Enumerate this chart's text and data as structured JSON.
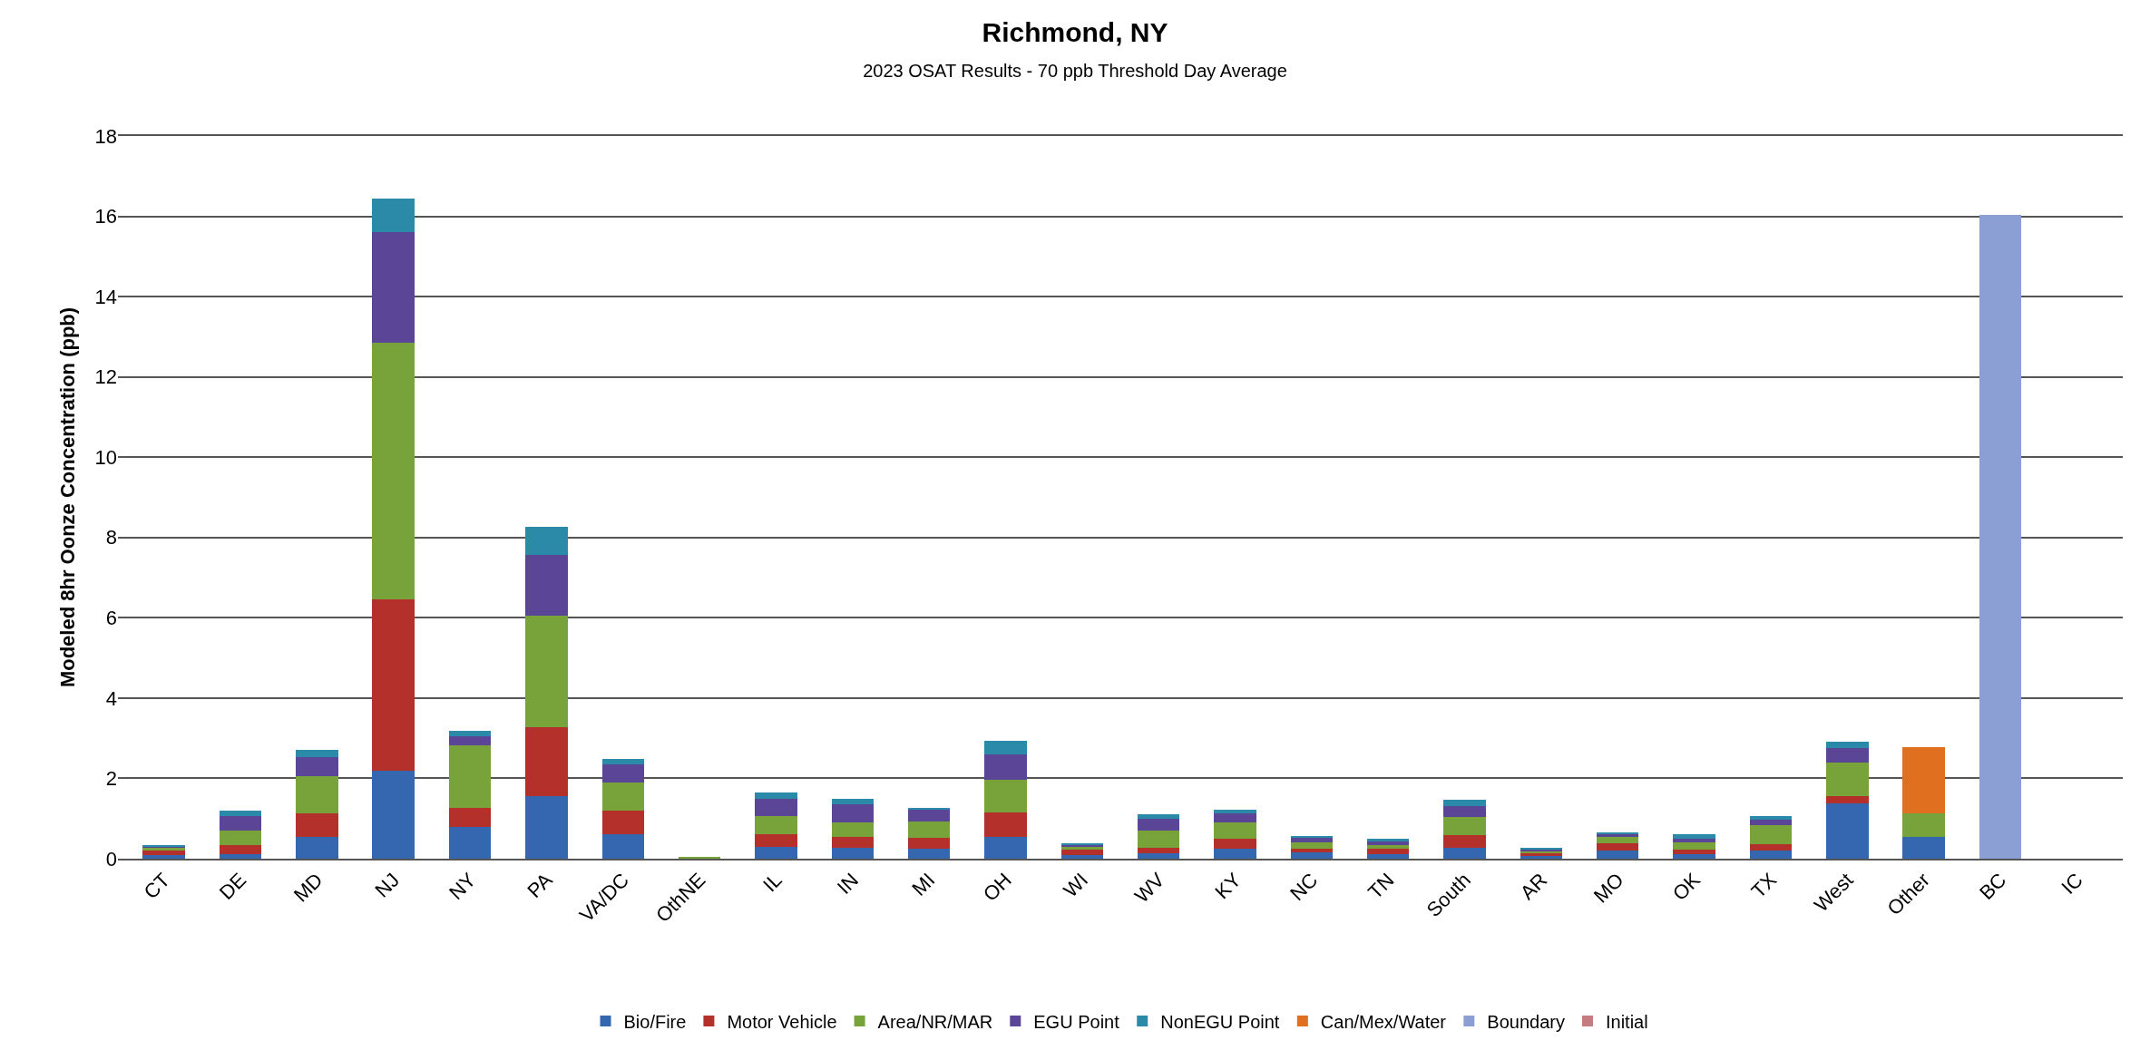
{
  "chart_data": {
    "type": "bar",
    "stacked": true,
    "title": "Richmond, NY",
    "subtitle": "2023 OSAT Results - 70 ppb Threshold Day Average",
    "ylabel": "Modeled 8hr Oonze Concentration (ppb)",
    "categories": [
      "CT",
      "DE",
      "MD",
      "NJ",
      "NY",
      "PA",
      "VA/DC",
      "OthNE",
      "IL",
      "IN",
      "MI",
      "OH",
      "WI",
      "WV",
      "KY",
      "NC",
      "TN",
      "South",
      "AR",
      "MO",
      "OK",
      "TX",
      "West",
      "Other",
      "BC",
      "IC"
    ],
    "series": [
      {
        "name": "Bio/Fire",
        "color": "#3566b0",
        "values": [
          0.08,
          0.12,
          0.54,
          2.18,
          0.8,
          1.56,
          0.6,
          null,
          0.3,
          0.28,
          0.25,
          0.55,
          0.1,
          0.14,
          0.25,
          0.15,
          0.12,
          0.28,
          0.06,
          0.2,
          0.12,
          0.2,
          1.38,
          0.54,
          null,
          null
        ]
      },
      {
        "name": "Motor Vehicle",
        "color": "#b3302b",
        "values": [
          0.12,
          0.22,
          0.6,
          4.28,
          0.46,
          1.71,
          0.6,
          null,
          0.3,
          0.26,
          0.27,
          0.61,
          0.12,
          0.12,
          0.25,
          0.1,
          0.12,
          0.31,
          0.08,
          0.19,
          0.1,
          0.16,
          0.18,
          null,
          null,
          null
        ]
      },
      {
        "name": "Area/NR/MAR",
        "color": "#78a33b",
        "values": [
          0.08,
          0.36,
          0.91,
          6.39,
          1.56,
          2.79,
          0.7,
          0.04,
          0.46,
          0.36,
          0.4,
          0.8,
          0.08,
          0.44,
          0.4,
          0.15,
          0.1,
          0.44,
          0.04,
          0.15,
          0.18,
          0.48,
          0.84,
          0.6,
          null,
          null
        ]
      },
      {
        "name": "EGU Point",
        "color": "#5b4597",
        "values": [
          0.02,
          0.36,
          0.48,
          2.75,
          0.24,
          1.5,
          0.44,
          null,
          0.44,
          0.45,
          0.3,
          0.64,
          0.04,
          0.3,
          0.22,
          0.12,
          0.1,
          0.27,
          0.05,
          0.08,
          0.1,
          0.14,
          0.36,
          null,
          null,
          null
        ]
      },
      {
        "name": "NonEGU Point",
        "color": "#2b8aa8",
        "values": [
          0.03,
          0.14,
          0.18,
          0.85,
          0.12,
          0.7,
          0.14,
          null,
          0.14,
          0.13,
          0.05,
          0.33,
          0.03,
          0.1,
          0.1,
          0.04,
          0.06,
          0.16,
          0.03,
          0.03,
          0.1,
          0.08,
          0.16,
          null,
          null,
          null
        ]
      },
      {
        "name": "Can/Mex/Water",
        "color": "#e07020",
        "values": [
          null,
          null,
          null,
          null,
          null,
          null,
          null,
          null,
          null,
          null,
          null,
          null,
          null,
          null,
          null,
          null,
          null,
          null,
          null,
          null,
          null,
          null,
          null,
          1.64,
          null,
          null
        ]
      },
      {
        "name": "Boundary",
        "color": "#8c9fd4",
        "values": [
          null,
          null,
          null,
          null,
          null,
          null,
          null,
          null,
          null,
          null,
          null,
          null,
          null,
          null,
          null,
          null,
          null,
          null,
          null,
          null,
          null,
          null,
          null,
          null,
          16.03,
          null
        ]
      },
      {
        "name": "Initial",
        "color": "#c47c80",
        "values": [
          null,
          null,
          null,
          null,
          null,
          null,
          null,
          null,
          null,
          null,
          null,
          null,
          null,
          null,
          null,
          null,
          null,
          null,
          null,
          null,
          null,
          null,
          null,
          null,
          null,
          null
        ]
      }
    ],
    "ylim": [
      0,
      18
    ],
    "yticks": [
      0,
      2,
      4,
      6,
      8,
      10,
      12,
      14,
      16,
      18
    ],
    "grid": "y",
    "legend": "bottom"
  }
}
